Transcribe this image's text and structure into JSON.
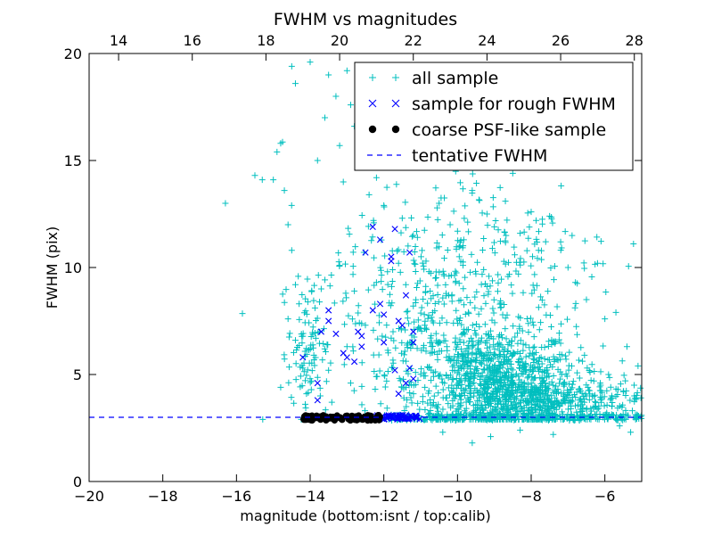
{
  "chart_data": {
    "type": "scatter",
    "title": "FWHM vs magnitudes",
    "xlabel": "magnitude (bottom:isnt / top:calib)",
    "ylabel": "FWHM (pix)",
    "xlim": [
      -20,
      -5
    ],
    "ylim": [
      0,
      20
    ],
    "x_ticks": [
      "−20",
      "−18",
      "−16",
      "−14",
      "−12",
      "−10",
      "−8",
      "−6"
    ],
    "y_ticks": [
      "0",
      "5",
      "10",
      "15",
      "20"
    ],
    "top_axis": {
      "xlim": [
        13.2,
        28.2
      ],
      "ticks": [
        "14",
        "16",
        "18",
        "20",
        "22",
        "24",
        "26",
        "28"
      ]
    },
    "grid": false,
    "legend_position": "upper-right",
    "legend": [
      {
        "label": "all sample",
        "marker": "plus",
        "color": "#00bfbf"
      },
      {
        "label": "sample for rough FWHM",
        "marker": "x",
        "color": "#0000ff"
      },
      {
        "label": "coarse PSF-like sample",
        "marker": "dot",
        "color": "#000000"
      },
      {
        "label": "tentative FWHM",
        "marker": "dashed-line",
        "color": "#0000ff"
      }
    ],
    "tentative_fwhm": 3.0,
    "series": [
      {
        "name": "all sample",
        "marker": "plus",
        "color": "#00bfbf",
        "points": [
          [
            -16.3,
            13.0
          ],
          [
            -15.5,
            14.3
          ],
          [
            -15.3,
            14.1
          ],
          [
            -15.0,
            14.1
          ],
          [
            -14.9,
            15.4
          ],
          [
            -14.7,
            13.6
          ],
          [
            -14.8,
            15.8
          ],
          [
            -14.5,
            19.4
          ],
          [
            -14.4,
            18.6
          ],
          [
            -14.0,
            19.6
          ],
          [
            -13.8,
            15.0
          ],
          [
            -13.6,
            17.0
          ],
          [
            -13.5,
            19.0
          ],
          [
            -13.3,
            18.0
          ],
          [
            -13.2,
            15.7
          ],
          [
            -13.1,
            14.0
          ],
          [
            -13.0,
            19.2
          ],
          [
            -12.9,
            17.6
          ],
          [
            -12.8,
            16.6
          ],
          [
            -12.7,
            15.1
          ],
          [
            -12.4,
            13.4
          ],
          [
            -12.2,
            14.2
          ],
          [
            -12.0,
            12.9
          ],
          [
            -11.5,
            12.3
          ],
          [
            -11.2,
            11.5
          ],
          [
            -11.0,
            14.8
          ],
          [
            -10.8,
            16.0
          ],
          [
            -10.5,
            13.0
          ],
          [
            -10.2,
            12.0
          ],
          [
            -10.0,
            11.7
          ],
          [
            -9.6,
            13.6
          ],
          [
            -9.4,
            14.9
          ],
          [
            -9.2,
            12.5
          ],
          [
            -9.0,
            11.9
          ],
          [
            -8.8,
            15.1
          ],
          [
            -8.7,
            13.1
          ],
          [
            -8.5,
            14.4
          ],
          [
            -8.3,
            11.6
          ],
          [
            -8.0,
            12.6
          ],
          [
            -7.8,
            10.8
          ],
          [
            -7.5,
            12.4
          ],
          [
            -7.2,
            11.2
          ],
          [
            -7.0,
            10.0
          ],
          [
            -6.8,
            9.3
          ],
          [
            -6.5,
            8.5
          ],
          [
            -6.2,
            10.2
          ],
          [
            -6.0,
            7.6
          ],
          [
            -5.7,
            7.9
          ],
          [
            -5.4,
            6.3
          ],
          [
            -5.1,
            5.4
          ],
          [
            -14.6,
            12.0
          ],
          [
            -14.5,
            10.8
          ],
          [
            -14.4,
            9.2
          ],
          [
            -14.3,
            8.3
          ],
          [
            -14.6,
            7.6
          ],
          [
            -14.4,
            6.6
          ],
          [
            -14.2,
            5.3
          ],
          [
            -14.0,
            4.8
          ],
          [
            -14.8,
            4.4
          ],
          [
            -13.7,
            9.0
          ],
          [
            -13.2,
            10.1
          ],
          [
            -12.8,
            8.9
          ],
          [
            -12.2,
            9.3
          ],
          [
            -11.9,
            9.8
          ],
          [
            -11.6,
            10.2
          ],
          [
            -11.2,
            8.2
          ],
          [
            -10.9,
            7.8
          ],
          [
            -10.6,
            9.5
          ],
          [
            -11.8,
            6.7
          ],
          [
            -12.5,
            7.3
          ],
          [
            -13.0,
            6.3
          ],
          [
            -13.5,
            5.2
          ],
          [
            -13.9,
            5.9
          ],
          [
            -14.1,
            4.1
          ],
          [
            -12.9,
            4.6
          ],
          [
            -11.4,
            4.4
          ],
          [
            -10.3,
            5.8
          ],
          [
            -6.5,
            4.0
          ],
          [
            -6.1,
            3.7
          ],
          [
            -5.8,
            3.9
          ],
          [
            -5.5,
            4.2
          ],
          [
            -5.2,
            4.0
          ],
          [
            -6.3,
            4.7
          ],
          [
            -5.9,
            5.0
          ],
          [
            -7.6,
            4.4
          ],
          [
            -7.3,
            5.7
          ],
          [
            -6.9,
            5.4
          ],
          [
            -10.4,
            2.3
          ],
          [
            -9.6,
            1.8
          ],
          [
            -9.1,
            2.1
          ],
          [
            -8.3,
            2.4
          ],
          [
            -7.4,
            2.2
          ],
          [
            -5.6,
            2.6
          ],
          [
            -5.3,
            2.3
          ]
        ],
        "clusters": [
          {
            "cx": -9.0,
            "cy": 4.6,
            "sx": 1.1,
            "sy": 1.3,
            "n": 900
          },
          {
            "cx": -10.2,
            "cy": 7.5,
            "sx": 1.5,
            "sy": 2.2,
            "n": 260
          },
          {
            "cx": -7.6,
            "cy": 3.7,
            "sx": 1.3,
            "sy": 0.55,
            "n": 380
          },
          {
            "cx": -14.1,
            "cy": 6.2,
            "sx": 0.25,
            "sy": 1.6,
            "n": 80
          },
          {
            "cx": -12.3,
            "cy": 7.4,
            "sx": 0.9,
            "sy": 3.0,
            "n": 80
          },
          {
            "cx": -9.0,
            "cy": 10.6,
            "sx": 1.7,
            "sy": 2.5,
            "n": 180
          }
        ],
        "band": {
          "x0": -12.0,
          "x1": -5.0,
          "y0": 2.85,
          "y1": 3.15,
          "n": 260
        }
      },
      {
        "name": "sample for rough FWHM",
        "marker": "x",
        "color": "#0000ff",
        "points": [
          [
            -14.2,
            5.8
          ],
          [
            -13.8,
            4.6
          ],
          [
            -13.8,
            3.8
          ],
          [
            -13.7,
            7.0
          ],
          [
            -13.5,
            7.5
          ],
          [
            -13.5,
            8.0
          ],
          [
            -13.3,
            6.9
          ],
          [
            -13.1,
            6.0
          ],
          [
            -13.0,
            5.8
          ],
          [
            -12.8,
            5.6
          ],
          [
            -12.7,
            7.0
          ],
          [
            -12.6,
            6.8
          ],
          [
            -12.6,
            6.3
          ],
          [
            -12.5,
            10.7
          ],
          [
            -12.3,
            8.0
          ],
          [
            -12.3,
            11.9
          ],
          [
            -12.1,
            8.3
          ],
          [
            -12.1,
            11.3
          ],
          [
            -12.0,
            7.8
          ],
          [
            -12.0,
            6.5
          ],
          [
            -11.8,
            10.5
          ],
          [
            -11.8,
            10.3
          ],
          [
            -11.7,
            11.8
          ],
          [
            -11.7,
            5.2
          ],
          [
            -11.6,
            4.1
          ],
          [
            -11.5,
            7.3
          ],
          [
            -11.4,
            4.6
          ],
          [
            -11.4,
            8.7
          ],
          [
            -11.3,
            10.7
          ],
          [
            -11.3,
            5.3
          ],
          [
            -11.2,
            4.8
          ],
          [
            -11.2,
            6.5
          ],
          [
            -11.6,
            7.5
          ],
          [
            -11.2,
            7.0
          ]
        ],
        "band": {
          "x0": -12.2,
          "x1": -11.0,
          "y0": 2.9,
          "y1": 3.1,
          "n": 60
        }
      },
      {
        "name": "coarse PSF-like sample",
        "marker": "dot",
        "color": "#000000",
        "band": {
          "x0": -14.2,
          "x1": -12.1,
          "y0": 2.85,
          "y1": 3.1,
          "n": 90
        }
      }
    ]
  }
}
